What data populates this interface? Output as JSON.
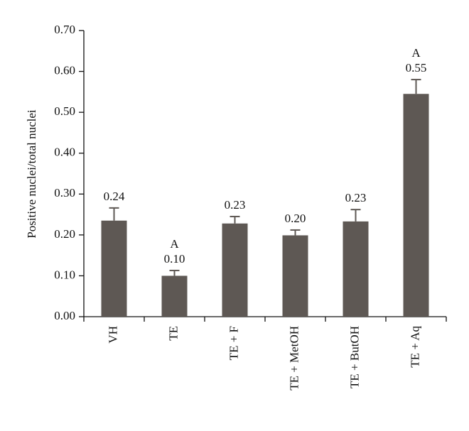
{
  "chart_data": {
    "type": "bar",
    "ylabel": "Positive nuclei/total nuclei",
    "categories": [
      "VH",
      "TE",
      "TE + F",
      "TE + MetOH",
      "TE + ButOH",
      "TE + Aq"
    ],
    "values": [
      0.235,
      0.1,
      0.228,
      0.199,
      0.233,
      0.545
    ],
    "value_labels": [
      "0.24",
      "0.10",
      "0.23",
      "0.20",
      "0.23",
      "0.55"
    ],
    "errors": [
      0.031,
      0.013,
      0.017,
      0.013,
      0.029,
      0.035
    ],
    "annotations": [
      null,
      "A",
      null,
      null,
      null,
      "A"
    ],
    "color": "#5e5854",
    "ylim": [
      0,
      0.7
    ],
    "yticks": [
      {
        "value": 0,
        "label": "0.00"
      },
      {
        "value": 0.1,
        "label": "0.10"
      },
      {
        "value": 0.2,
        "label": "0.20"
      },
      {
        "value": 0.3,
        "label": "0.30"
      },
      {
        "value": 0.4,
        "label": "0.40"
      },
      {
        "value": 0.5,
        "label": "0.50"
      },
      {
        "value": 0.6,
        "label": "0.60"
      },
      {
        "value": 0.7,
        "label": "0.70"
      }
    ],
    "grid": false
  }
}
